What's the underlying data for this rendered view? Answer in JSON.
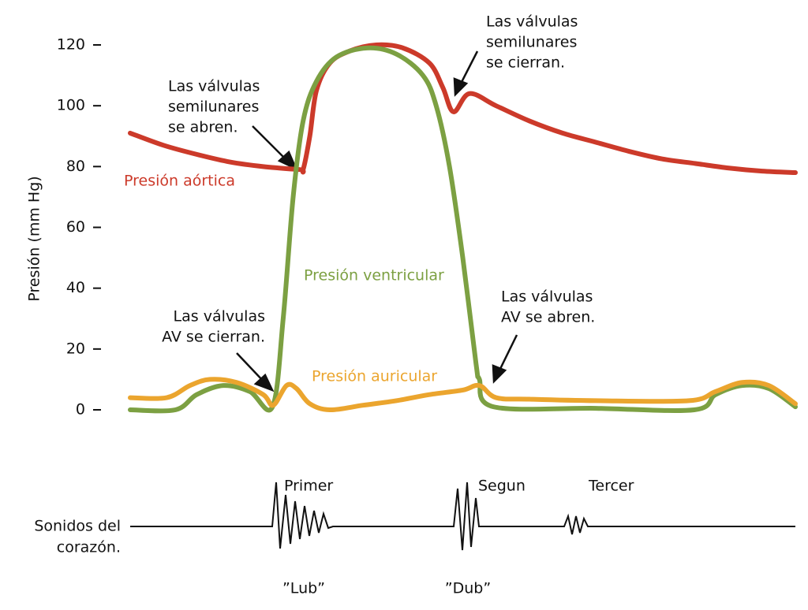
{
  "chart_data": {
    "type": "line",
    "ylabel": "Presión (mm Hg)",
    "ylim": [
      0,
      120
    ],
    "yticks": [
      0,
      20,
      40,
      60,
      80,
      100,
      120
    ],
    "xlim": [
      0,
      100
    ],
    "series": [
      {
        "name": "Presión aórtica",
        "color": "#cc3a2a",
        "x": [
          0,
          5,
          10,
          15,
          20,
          25.5,
          26,
          27,
          28,
          30,
          33,
          37,
          41,
          45,
          47,
          48.6,
          51,
          55,
          60,
          65,
          70,
          75,
          80,
          85,
          90,
          95,
          100
        ],
        "values": [
          91,
          87,
          84,
          81.5,
          80,
          79,
          79,
          90,
          105,
          114,
          118,
          120,
          119,
          114,
          106,
          98,
          104,
          100,
          95,
          91,
          88,
          85,
          82.5,
          81,
          79.5,
          78.5,
          78
        ]
      },
      {
        "name": "Presión ventricular",
        "color": "#7ca042",
        "x": [
          0,
          6.8,
          10,
          14,
          18,
          21.4,
          23,
          24.5,
          26,
          28,
          31,
          35.6,
          40,
          44,
          46,
          48,
          50,
          52,
          52.5,
          54.6,
          70,
          84.8,
          88,
          92,
          96,
          100
        ],
        "values": [
          0,
          0,
          5,
          8,
          6,
          1,
          30,
          70,
          95,
          108,
          116,
          119,
          117,
          110,
          100,
          80,
          50,
          15,
          10,
          1,
          0.5,
          0,
          5,
          8,
          7,
          1
        ]
      },
      {
        "name": "Presión auricular",
        "color": "#eba52e",
        "x": [
          0,
          5.5,
          9,
          12,
          16,
          20,
          21.5,
          23.5,
          25,
          27,
          30,
          35,
          40,
          45,
          50,
          52.5,
          55,
          60,
          70,
          84,
          88,
          92,
          96,
          100
        ],
        "values": [
          4,
          4,
          8,
          10,
          9,
          5,
          1.5,
          8,
          7,
          2,
          0,
          1.5,
          3,
          5,
          6.5,
          8,
          4,
          3.5,
          3,
          3,
          6,
          9,
          8,
          2
        ]
      }
    ],
    "annotations": [
      [
        "Las válvulas",
        "semilunares",
        "se abren."
      ],
      [
        "Las válvulas",
        "semilunares",
        "se cierran."
      ],
      [
        "Las válvulas",
        "AV se cierran."
      ],
      [
        "Las válvulas",
        "AV se abren."
      ]
    ],
    "heart_sounds": {
      "label": [
        "Sonidos del",
        "corazón."
      ],
      "sounds": [
        "Primer",
        "Segun",
        "Tercer"
      ],
      "names": [
        "”Lub”",
        "”Dub”"
      ]
    }
  }
}
